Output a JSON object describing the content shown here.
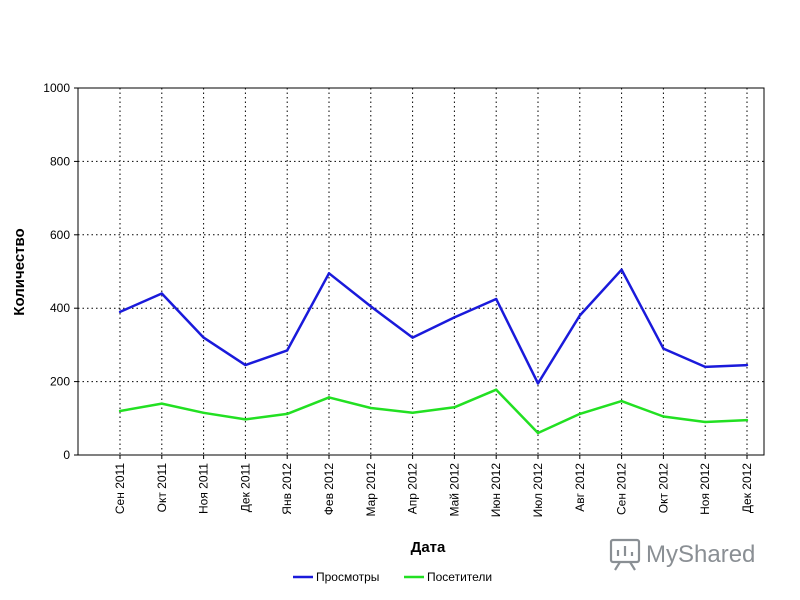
{
  "chart_data": {
    "type": "line",
    "title": "",
    "xlabel": "Дата",
    "ylabel": "Количество",
    "ylim": [
      0,
      1000
    ],
    "yticks": [
      "0",
      "200",
      "400",
      "600",
      "800",
      "1000"
    ],
    "categories": [
      "Сен 2011",
      "Окт 2011",
      "Ноя 2011",
      "Дек 2011",
      "Янв 2012",
      "Фев 2012",
      "Мар 2012",
      "Апр 2012",
      "Май 2012",
      "Июн 2012",
      "Июл 2012",
      "Авг 2012",
      "Сен 2012",
      "Окт 2012",
      "Ноя 2012",
      "Дек 2012"
    ],
    "grid": true,
    "legend_position": "bottom",
    "series": [
      {
        "name": "Просмотры",
        "color": "#1a1adb",
        "values": [
          390,
          440,
          320,
          245,
          285,
          495,
          405,
          320,
          375,
          425,
          195,
          380,
          505,
          290,
          240,
          245
        ]
      },
      {
        "name": "Посетители",
        "color": "#22e022",
        "values": [
          120,
          140,
          115,
          97,
          112,
          157,
          128,
          115,
          130,
          178,
          60,
          112,
          147,
          105,
          90,
          95
        ]
      }
    ]
  },
  "watermark": {
    "text": "MyShared",
    "icon": "presentation-icon",
    "color": "#8a8f94"
  }
}
